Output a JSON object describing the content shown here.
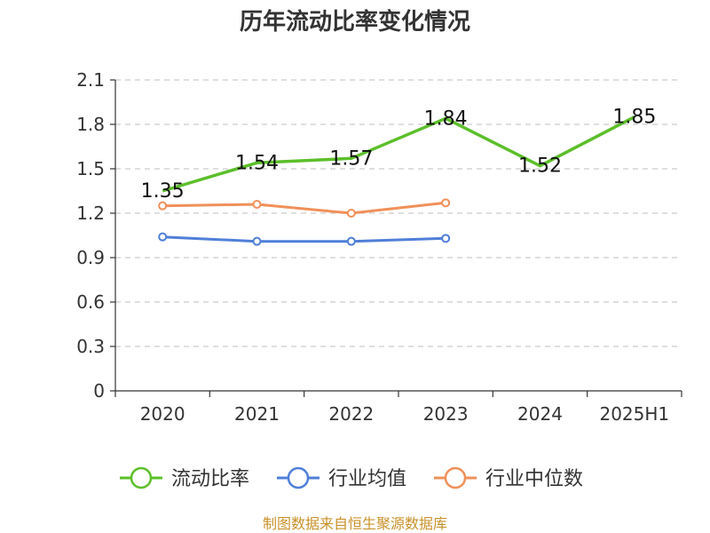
{
  "chart_data": {
    "type": "line",
    "title": "历年流动比率变化情况",
    "categories": [
      "2020",
      "2021",
      "2022",
      "2023",
      "2024",
      "2025H1"
    ],
    "y_ticks": [
      "0",
      "0.3",
      "0.6",
      "0.9",
      "1.2",
      "1.5",
      "1.8",
      "2.1"
    ],
    "ylim": [
      0,
      2.1
    ],
    "grid": true,
    "legend_position": "bottom",
    "series": [
      {
        "name": "流动比率",
        "color": "#5cbf2a",
        "values": [
          1.35,
          1.54,
          1.57,
          1.84,
          1.52,
          1.85
        ],
        "labels": [
          "1.35",
          "1.54",
          "1.57",
          "1.84",
          "1.52",
          "1.85"
        ],
        "markers": false
      },
      {
        "name": "行业均值",
        "color": "#4f7fd8",
        "values": [
          1.04,
          1.01,
          1.01,
          1.03,
          null,
          null
        ],
        "markers": true
      },
      {
        "name": "行业中位数",
        "color": "#f0905a",
        "values": [
          1.25,
          1.26,
          1.2,
          1.27,
          null,
          null
        ],
        "markers": true
      }
    ],
    "source": "制图数据来自恒生聚源数据库"
  }
}
